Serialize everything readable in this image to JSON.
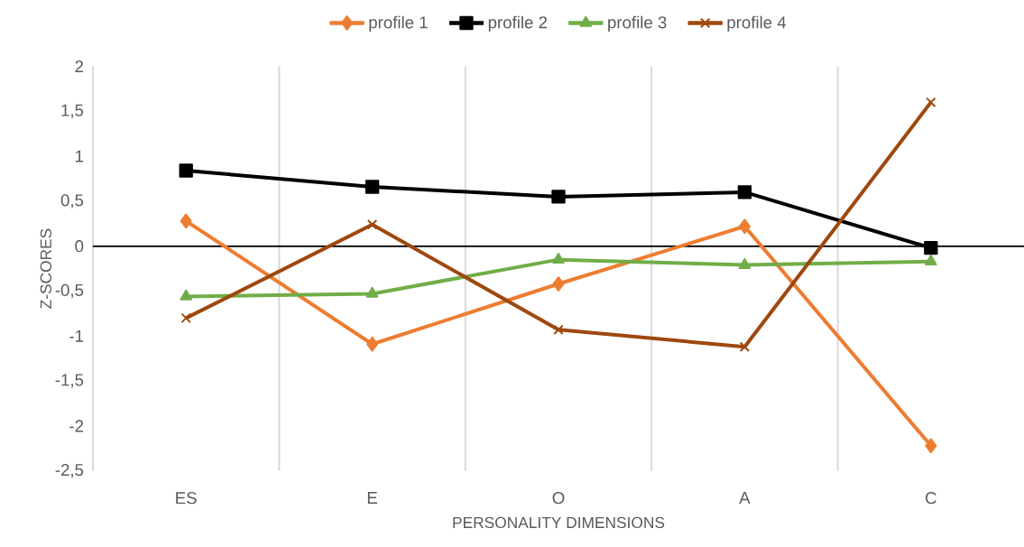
{
  "chart_data": {
    "type": "line",
    "xlabel": "PERSONALITY DIMENSIONS",
    "ylabel": "Z-SCORES",
    "categories": [
      "ES",
      "E",
      "O",
      "A",
      "C"
    ],
    "series": [
      {
        "name": "profile 1",
        "color": "#ed7d31",
        "marker": "diamond",
        "values": [
          0.28,
          -1.09,
          -0.42,
          0.22,
          -2.22
        ]
      },
      {
        "name": "profile 2",
        "color": "#000000",
        "marker": "square",
        "values": [
          0.84,
          0.66,
          0.55,
          0.6,
          -0.02
        ]
      },
      {
        "name": "profile 3",
        "color": "#70ad47",
        "marker": "triangle",
        "values": [
          -0.56,
          -0.53,
          -0.15,
          -0.21,
          -0.17
        ]
      },
      {
        "name": "profile 4",
        "color": "#9e480e",
        "marker": "cross",
        "values": [
          -0.8,
          0.24,
          -0.93,
          -1.12,
          1.6
        ]
      }
    ],
    "ylim": [
      -2.5,
      2
    ],
    "yticks": [
      {
        "value": -2.5,
        "label": "-2,5"
      },
      -2,
      {
        "value": -1.5,
        "label": "-1,5"
      },
      -1,
      {
        "value": -0.5,
        "label": "-0,5"
      },
      0,
      {
        "value": 0.5,
        "label": "0,5"
      },
      1,
      {
        "value": 1.5,
        "label": "1,5"
      },
      2
    ],
    "grid": "x",
    "legend": "top",
    "line_style": "solid"
  }
}
